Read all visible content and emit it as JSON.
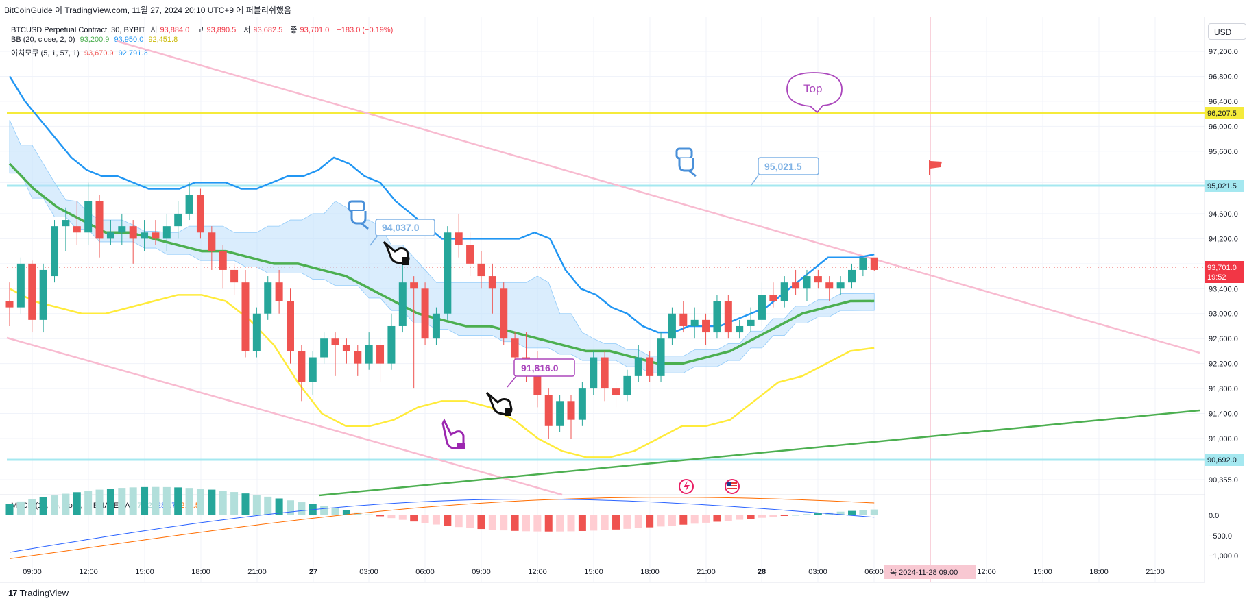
{
  "caption": "BitCoinGuide 이 TradingView.com, 11월 27, 2024 20:10 UTC+9 에 퍼블리쉬했음",
  "footer_brand": "TradingView",
  "footer_logo": "17",
  "currency_button": "USD",
  "legend": {
    "symbol": "BTCUSD Perpetual Contract, 30, BYBIT",
    "open_label": "시",
    "open": "93,884.0",
    "high_label": "고",
    "high": "93,890.5",
    "low_label": "저",
    "low": "93,682.5",
    "close_label": "종",
    "close": "93,701.0",
    "change": "−183.0 (−0.19%)",
    "bb_name": "BB (20, close, 2, 0)",
    "bb_basis": "93,200.9",
    "bb_upper": "93,950.0",
    "bb_lower": "92,451.8",
    "ichimoku_name": "이치모쿠 (5, 1, 57, 1)",
    "ichi_a": "93,670.9",
    "ichi_b": "92,791.8",
    "macd_name": "MACD (12, 26, close, 9, EMA, EMA)",
    "macd_hist": "71.2",
    "macd_line": "285.7",
    "macd_signal": "214.5"
  },
  "colors": {
    "up": "#26a69a",
    "down": "#ef5350",
    "bb_basis": "#4caf50",
    "bb_upper": "#2196f3",
    "bb_lower": "#ffeb3b",
    "cloud": "#bbdefb",
    "channel": "#f8bbd0",
    "support": "#4caf50",
    "resistance_yellow": "#f5eb3b",
    "level_cyan": "#a5e8f0"
  },
  "annotations": {
    "label_94037": "94,037.0",
    "label_95021": "95,021.5",
    "label_91816": "91,816.0",
    "top_bubble": "Top"
  },
  "price_tags": {
    "current_price": "93,701.0",
    "countdown": "19:52",
    "level_96207": "96,207.5",
    "level_95021": "95,021.5",
    "level_90692": "90,692.0"
  },
  "crosshair_label": "목 2024-11-28  09:00",
  "chart_data": {
    "type": "candlestick",
    "interval": "30m",
    "y_axis_ticks": [
      "97,200.0",
      "96,800.0",
      "96,400.0",
      "96,000.0",
      "95,600.0",
      "95,100.0",
      "94,600.0",
      "94,200.0",
      "93,800.0",
      "93,400.0",
      "93,000.0",
      "92,600.0",
      "92,200.0",
      "91,800.0",
      "91,400.0",
      "91,000.0",
      "90,355.0"
    ],
    "x_axis_ticks": [
      "09:00",
      "12:00",
      "15:00",
      "18:00",
      "21:00",
      "27",
      "03:00",
      "06:00",
      "09:00",
      "12:00",
      "15:00",
      "18:00",
      "21:00",
      "28",
      "03:00",
      "06:00",
      "09:00",
      "12:00",
      "15:00",
      "18:00",
      "21:00"
    ],
    "macd_axis_ticks": [
      "0.0",
      "−500.0",
      "−1,000.0"
    ],
    "ylim": [
      90300,
      97500
    ],
    "candles": [
      [
        93200,
        93100,
        92800,
        93500
      ],
      [
        93100,
        93800,
        93000,
        93900
      ],
      [
        93800,
        92900,
        92700,
        93850
      ],
      [
        92900,
        93700,
        92700,
        93800
      ],
      [
        93600,
        94400,
        93500,
        94500
      ],
      [
        94400,
        94500,
        94000,
        94700
      ],
      [
        94400,
        94300,
        94100,
        94800
      ],
      [
        94300,
        94800,
        94100,
        95100
      ],
      [
        94800,
        94200,
        93900,
        94900
      ],
      [
        94200,
        94300,
        94100,
        94500
      ],
      [
        94300,
        94400,
        94100,
        94600
      ],
      [
        94400,
        94200,
        93800,
        94500
      ],
      [
        94200,
        94300,
        94000,
        94500
      ],
      [
        94300,
        94200,
        94100,
        94500
      ],
      [
        94200,
        94400,
        94000,
        94600
      ],
      [
        94400,
        94600,
        94200,
        94800
      ],
      [
        94600,
        94900,
        94500,
        95100
      ],
      [
        94900,
        94300,
        94200,
        95000
      ],
      [
        94300,
        94000,
        93700,
        94400
      ],
      [
        94000,
        93700,
        93400,
        94100
      ],
      [
        93700,
        93500,
        93300,
        93800
      ],
      [
        93500,
        92400,
        92300,
        93700
      ],
      [
        92400,
        93000,
        92300,
        93100
      ],
      [
        93000,
        93500,
        92900,
        93600
      ],
      [
        93500,
        93200,
        93000,
        93700
      ],
      [
        93200,
        92400,
        92200,
        93400
      ],
      [
        92400,
        91900,
        91600,
        92500
      ],
      [
        91900,
        92300,
        91700,
        92400
      ],
      [
        92300,
        92600,
        92200,
        92700
      ],
      [
        92600,
        92500,
        92000,
        92700
      ],
      [
        92500,
        92400,
        92200,
        92600
      ],
      [
        92400,
        92200,
        92000,
        92500
      ],
      [
        92200,
        92500,
        92100,
        92700
      ],
      [
        92500,
        92200,
        91900,
        92600
      ],
      [
        92200,
        92800,
        92100,
        93000
      ],
      [
        92800,
        93500,
        92700,
        93800
      ],
      [
        93500,
        93400,
        91800,
        93600
      ],
      [
        93400,
        92600,
        92500,
        93500
      ],
      [
        92600,
        93000,
        92500,
        93100
      ],
      [
        93000,
        94300,
        92900,
        94400
      ],
      [
        94300,
        94100,
        93900,
        94600
      ],
      [
        94100,
        93800,
        93600,
        94300
      ],
      [
        93800,
        93600,
        93400,
        94000
      ],
      [
        93600,
        93400,
        93000,
        93800
      ],
      [
        93400,
        92600,
        92500,
        93500
      ],
      [
        92600,
        92300,
        92000,
        92700
      ],
      [
        92300,
        92200,
        91900,
        92700
      ],
      [
        92200,
        91700,
        91500,
        92400
      ],
      [
        91700,
        91200,
        91000,
        91800
      ],
      [
        91200,
        91600,
        91100,
        91700
      ],
      [
        91600,
        91300,
        91000,
        91700
      ],
      [
        91300,
        91800,
        91200,
        91900
      ],
      [
        91800,
        92300,
        91700,
        92400
      ],
      [
        92300,
        91800,
        91600,
        92400
      ],
      [
        91800,
        91700,
        91500,
        91900
      ],
      [
        91700,
        92000,
        91600,
        92100
      ],
      [
        92000,
        92300,
        91900,
        92500
      ],
      [
        92300,
        92000,
        91900,
        92400
      ],
      [
        92000,
        92600,
        91900,
        92700
      ],
      [
        92600,
        93000,
        92500,
        93100
      ],
      [
        93000,
        92800,
        92700,
        93200
      ],
      [
        92800,
        92900,
        92600,
        93100
      ],
      [
        92900,
        92700,
        92500,
        93000
      ],
      [
        92700,
        93200,
        92600,
        93300
      ],
      [
        93200,
        92700,
        92600,
        93300
      ],
      [
        92700,
        92800,
        92600,
        92900
      ],
      [
        92800,
        92900,
        92700,
        93100
      ],
      [
        92900,
        93300,
        92800,
        93500
      ],
      [
        93300,
        93200,
        93100,
        93500
      ],
      [
        93200,
        93500,
        93100,
        93600
      ],
      [
        93500,
        93400,
        93300,
        93700
      ],
      [
        93400,
        93600,
        93200,
        93700
      ],
      [
        93600,
        93500,
        93400,
        93700
      ],
      [
        93500,
        93400,
        93200,
        93600
      ],
      [
        93400,
        93500,
        93300,
        93600
      ],
      [
        93500,
        93700,
        93400,
        93800
      ],
      [
        93700,
        93900,
        93600,
        93900
      ],
      [
        93900,
        93700,
        93680,
        93890
      ]
    ],
    "bb_upper": [
      96800,
      96400,
      96100,
      95800,
      95500,
      95300,
      95200,
      95200,
      95100,
      95000,
      95000,
      95000,
      95100,
      95100,
      95100,
      95000,
      95000,
      95100,
      95200,
      95200,
      95300,
      95500,
      95400,
      95200,
      95100,
      94800,
      94600,
      94400,
      94200,
      94200,
      94200,
      94200,
      94200,
      94200,
      94300,
      94200,
      93700,
      93400,
      93300,
      93100,
      93000,
      92800,
      92700,
      92700,
      92800,
      92800,
      92800,
      92900,
      93000,
      93100,
      93300,
      93500,
      93700,
      93900,
      93900,
      93900,
      93950
    ],
    "bb_basis": [
      95400,
      95000,
      94700,
      94500,
      94300,
      94300,
      94200,
      94100,
      94000,
      94000,
      93900,
      93800,
      93800,
      93700,
      93600,
      93400,
      93200,
      93000,
      92900,
      92800,
      92800,
      92700,
      92600,
      92500,
      92400,
      92400,
      92300,
      92200,
      92200,
      92300,
      92400,
      92600,
      92800,
      93000,
      93100,
      93200,
      93201
    ],
    "bb_lower": [
      93400,
      93200,
      93100,
      93000,
      93000,
      93100,
      93200,
      93300,
      93300,
      93200,
      92900,
      92500,
      91900,
      91400,
      91200,
      91200,
      91300,
      91500,
      91600,
      91600,
      91500,
      91300,
      91000,
      90800,
      90700,
      90700,
      90800,
      91000,
      91200,
      91200,
      91300,
      91600,
      91900,
      92000,
      92200,
      92400,
      92452
    ]
  }
}
